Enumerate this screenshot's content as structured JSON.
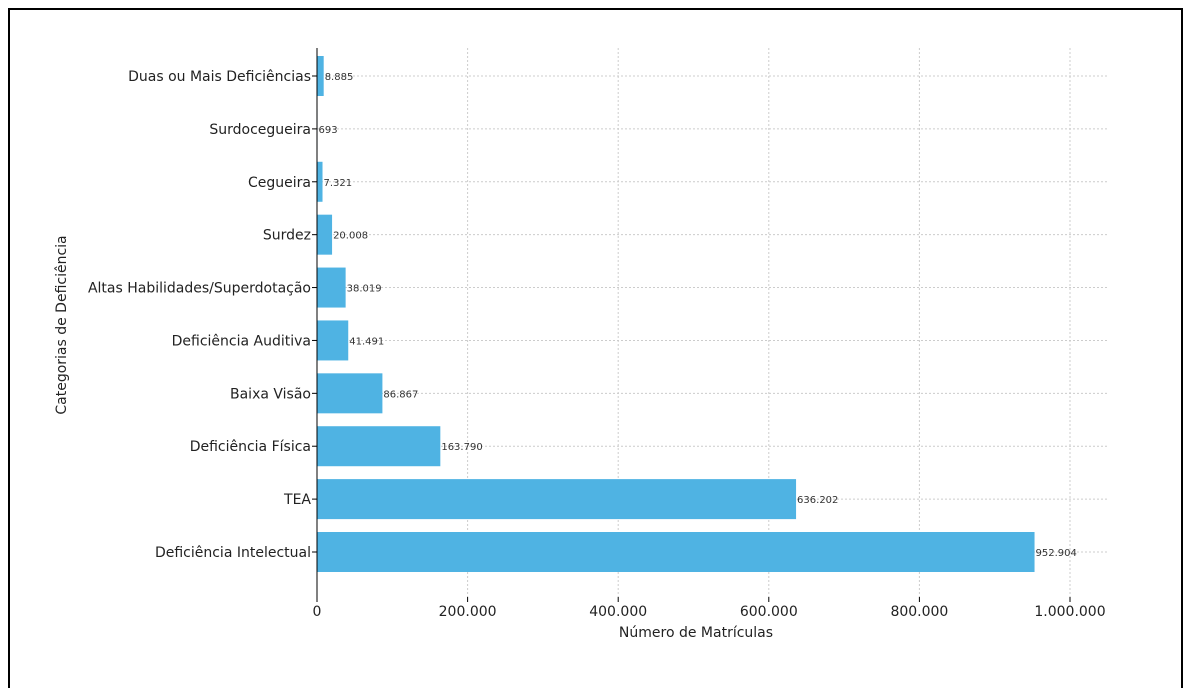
{
  "chart_data": {
    "type": "bar",
    "orientation": "horizontal",
    "xlabel": "Número de Matrículas",
    "ylabel": "Categorias de Deficiência",
    "categories": [
      "Deficiência Intelectual",
      "TEA",
      "Deficiência Física",
      "Baixa Visão",
      "Deficiência Auditiva",
      "Altas Habilidades/Superdotação",
      "Surdez",
      "Cegueira",
      "Surdocegueira",
      "Duas ou Mais Deficiências"
    ],
    "values": [
      952904,
      636202,
      163790,
      86867,
      41491,
      38019,
      20008,
      7321,
      693,
      8885
    ],
    "value_labels": [
      "952.904",
      "636.202",
      "163.790",
      "86.867",
      "41.491",
      "38.019",
      "20.008",
      "7.321",
      "693",
      "8.885"
    ],
    "xlim": [
      0,
      1050000
    ],
    "xticks": [
      0,
      200000,
      400000,
      600000,
      800000,
      1000000
    ],
    "xtick_labels": [
      "0",
      "200.000",
      "400.000",
      "600.000",
      "800.000",
      "1.000.000"
    ],
    "grid": true,
    "bar_color": "#4fb3e3"
  }
}
